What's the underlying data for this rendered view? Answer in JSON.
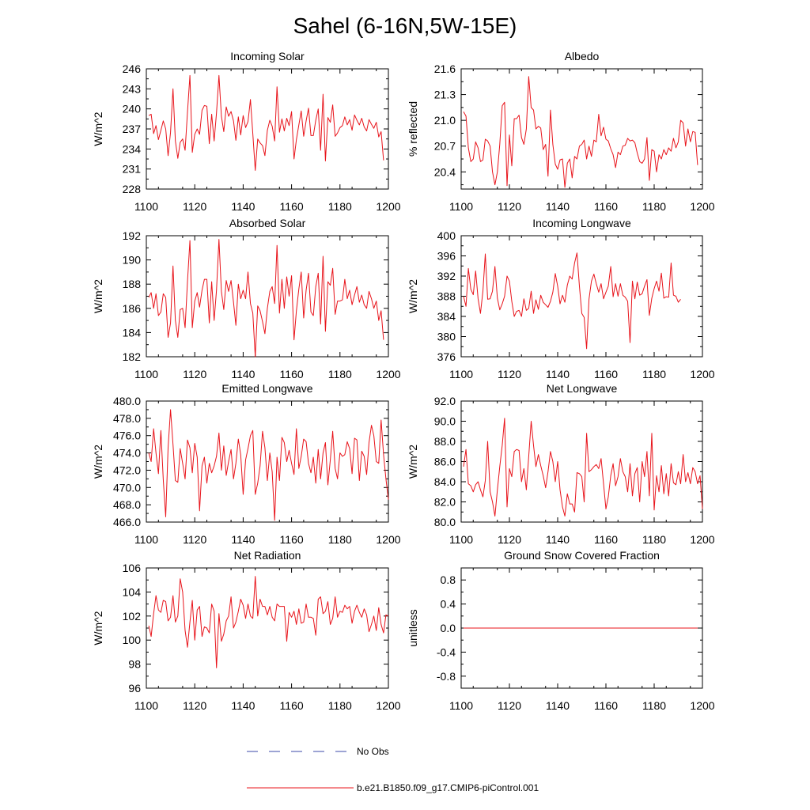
{
  "figure_title": "Sahel (6-16N,5W-15E)",
  "legend": {
    "obs_label": "No Obs",
    "obs_color": "#3b4aa8",
    "model_label": "b.e21.B1850.f09_g17.CMIP6-piControl.001",
    "model_color": "#e8141b"
  },
  "chart_data": [
    {
      "type": "line",
      "title": "Incoming Solar",
      "ylabel": "W/m^2",
      "xlim": [
        1100,
        1200
      ],
      "ylim": [
        228,
        246
      ],
      "xticks": [
        "1100",
        "1120",
        "1140",
        "1160",
        "1180",
        "1200"
      ],
      "yticks": [
        "228",
        "231",
        "234",
        "237",
        "240",
        "243",
        "246"
      ],
      "x_start": 1101,
      "series": [
        {
          "name": "b.e21.B1850.f09_g17.CMIP6-piControl.001",
          "values": [
            239.0,
            239.2,
            236.3,
            237.5,
            235.4,
            236.8,
            238.2,
            237.0,
            233.0,
            236.5,
            243.0,
            235.2,
            232.6,
            235.0,
            235.5,
            233.8,
            239.5,
            245.0,
            233.5,
            236.2,
            237.0,
            236.2,
            239.8,
            240.5,
            240.4,
            234.8,
            239.2,
            235.2,
            239.4,
            245.0,
            238.9,
            236.6,
            240.3,
            238.9,
            239.6,
            238.2,
            235.3,
            238.8,
            236.1,
            239.0,
            237.2,
            238.1,
            241.4,
            236.3,
            230.8,
            235.5,
            234.9,
            234.5,
            233.0,
            236.8,
            238.3,
            237.4,
            235.2,
            243.3,
            236.5,
            238.5,
            236.7,
            238.6,
            237.5,
            239.6,
            232.5,
            235.4,
            237.6,
            239.7,
            235.9,
            238.2,
            240.1,
            236.0,
            236.0,
            238.3,
            240.0,
            233.8,
            242.2,
            232.2,
            238.7,
            238.0,
            240.6,
            235.9,
            236.4,
            237.2,
            237.5,
            238.8,
            237.6,
            238.4,
            236.8,
            239.1,
            238.3,
            237.6,
            238.6,
            237.3,
            236.7,
            238.4,
            237.7,
            237.1,
            238.0,
            235.8,
            236.6,
            232.3
          ]
        }
      ]
    },
    {
      "type": "line",
      "title": "Albedo",
      "ylabel": "% reflected",
      "xlim": [
        1100,
        1200
      ],
      "ylim": [
        20.2,
        21.6
      ],
      "xticks": [
        "1100",
        "1120",
        "1140",
        "1160",
        "1180",
        "1200"
      ],
      "yticks": [
        "20.4",
        "20.7",
        "21.0",
        "21.3",
        "21.6"
      ],
      "x_start": 1101,
      "series": [
        {
          "name": "b.e21.B1850.f09_g17.CMIP6-piControl.001",
          "values": [
            21.1,
            21.05,
            20.68,
            20.52,
            20.55,
            20.75,
            20.68,
            20.52,
            20.54,
            20.78,
            20.76,
            20.7,
            20.4,
            20.25,
            20.4,
            20.72,
            21.17,
            21.21,
            20.24,
            20.83,
            20.47,
            21.02,
            21.02,
            21.06,
            20.8,
            20.72,
            20.9,
            21.51,
            21.15,
            21.12,
            20.9,
            20.93,
            20.91,
            20.66,
            20.72,
            20.35,
            21.12,
            20.72,
            20.49,
            20.43,
            20.54,
            20.55,
            20.22,
            20.5,
            20.55,
            20.33,
            20.58,
            20.55,
            20.7,
            20.72,
            20.77,
            20.55,
            20.7,
            20.58,
            20.77,
            20.75,
            21.07,
            20.82,
            20.92,
            20.78,
            20.76,
            20.67,
            20.6,
            20.45,
            20.63,
            20.6,
            20.7,
            20.71,
            20.79,
            20.76,
            20.77,
            20.74,
            20.62,
            20.52,
            20.5,
            20.55,
            20.8,
            20.3,
            20.66,
            20.64,
            20.4,
            20.6,
            20.55,
            20.66,
            20.6,
            20.68,
            20.64,
            20.79,
            20.68,
            20.75,
            21.0,
            20.97,
            20.7,
            20.9,
            20.75,
            20.87,
            20.86,
            20.48
          ]
        }
      ]
    },
    {
      "type": "line",
      "title": "Absorbed Solar",
      "ylabel": "W/m^2",
      "xlim": [
        1100,
        1200
      ],
      "ylim": [
        182,
        192
      ],
      "xticks": [
        "1100",
        "1120",
        "1140",
        "1160",
        "1180",
        "1200"
      ],
      "yticks": [
        "182",
        "184",
        "186",
        "188",
        "190",
        "192"
      ],
      "x_start": 1101,
      "series": [
        {
          "name": "b.e21.B1850.f09_g17.CMIP6-piControl.001",
          "values": [
            186.9,
            187.3,
            186.0,
            187.2,
            185.4,
            185.7,
            187.2,
            186.9,
            183.6,
            184.8,
            189.5,
            185.0,
            183.6,
            185.9,
            186.0,
            184.4,
            188.2,
            191.6,
            184.4,
            186.6,
            187.3,
            186.1,
            187.5,
            188.4,
            188.4,
            184.8,
            188.2,
            185.0,
            187.5,
            191.7,
            187.4,
            185.9,
            188.3,
            187.4,
            188.3,
            186.5,
            184.6,
            188.0,
            186.8,
            187.5,
            186.8,
            189.0,
            186.4,
            185.6,
            182.0,
            186.2,
            185.8,
            184.9,
            183.9,
            186.0,
            187.4,
            187.8,
            186.4,
            191.2,
            185.6,
            188.4,
            186.0,
            188.6,
            187.0,
            188.7,
            183.4,
            185.8,
            187.6,
            189.0,
            185.2,
            187.5,
            188.9,
            185.7,
            185.4,
            187.8,
            188.9,
            184.7,
            190.3,
            184.1,
            188.2,
            187.9,
            189.3,
            185.5,
            186.6,
            186.6,
            186.7,
            188.4,
            186.8,
            187.5,
            186.3,
            187.1,
            187.8,
            186.5,
            187.1,
            186.3,
            186.0,
            187.4,
            186.8,
            186.0,
            186.6,
            185.0,
            185.8,
            183.4
          ]
        }
      ]
    },
    {
      "type": "line",
      "title": "Incoming Longwave",
      "ylabel": "W/m^2",
      "xlim": [
        1100,
        1200
      ],
      "ylim": [
        376,
        400
      ],
      "xticks": [
        "1100",
        "1120",
        "1140",
        "1160",
        "1180",
        "1200"
      ],
      "yticks": [
        "376",
        "380",
        "384",
        "388",
        "392",
        "396",
        "400"
      ],
      "x_start": 1101,
      "series": [
        {
          "name": "b.e21.B1850.f09_g17.CMIP6-piControl.001",
          "values": [
            388.0,
            386.0,
            393.5,
            389.4,
            388.3,
            393.0,
            387.5,
            384.6,
            389.0,
            396.4,
            387.4,
            387.5,
            389.0,
            393.9,
            387.6,
            385.3,
            386.5,
            388.0,
            392.0,
            391.0,
            387.0,
            384.0,
            385.0,
            385.2,
            384.0,
            387.5,
            385.2,
            385.6,
            389.0,
            384.6,
            387.3,
            385.4,
            388.2,
            386.8,
            386.3,
            385.8,
            387.0,
            388.8,
            392.5,
            390.0,
            386.5,
            388.2,
            386.8,
            390.2,
            392.0,
            391.4,
            394.6,
            396.6,
            390.0,
            384.6,
            383.8,
            377.6,
            387.4,
            391.0,
            392.4,
            390.5,
            388.8,
            390.5,
            387.5,
            388.8,
            390.0,
            393.9,
            387.9,
            390.5,
            388.0,
            390.5,
            388.2,
            387.8,
            387.0,
            378.8,
            391.0,
            387.5,
            390.8,
            388.2,
            388.5,
            390.0,
            391.3,
            384.2,
            387.6,
            389.5,
            391.0,
            389.0,
            392.6,
            387.6,
            387.9,
            387.8,
            394.6,
            388.2,
            388.0,
            386.8,
            387.4
          ]
        }
      ]
    },
    {
      "type": "line",
      "title": "Emitted Longwave",
      "ylabel": "W/m^2",
      "xlim": [
        1100,
        1200
      ],
      "ylim": [
        466.0,
        480.0
      ],
      "xticks": [
        "1100",
        "1120",
        "1140",
        "1160",
        "1180",
        "1200"
      ],
      "yticks": [
        "466.0",
        "468.0",
        "470.0",
        "472.0",
        "474.0",
        "476.0",
        "478.0",
        "480.0"
      ],
      "x_start": 1101,
      "series": [
        {
          "name": "b.e21.B1850.f09_g17.CMIP6-piControl.001",
          "values": [
            474.0,
            473.0,
            476.8,
            474.0,
            471.6,
            476.6,
            470.9,
            466.6,
            474.6,
            479.0,
            475.0,
            470.8,
            470.6,
            474.5,
            472.8,
            471.0,
            475.5,
            474.6,
            471.7,
            475.1,
            473.5,
            467.3,
            472.5,
            473.5,
            470.5,
            472.8,
            471.7,
            472.5,
            473.6,
            476.3,
            472.0,
            474.8,
            471.4,
            473.0,
            474.4,
            471.0,
            472.8,
            475.6,
            473.8,
            469.2,
            473.2,
            474.5,
            476.0,
            476.6,
            469.2,
            470.5,
            472.5,
            476.5,
            474.6,
            470.8,
            474.0,
            471.8,
            466.2,
            473.5,
            470.8,
            475.8,
            475.2,
            473.0,
            474.3,
            472.8,
            471.5,
            476.8,
            472.2,
            473.6,
            475.6,
            475.3,
            472.8,
            471.7,
            473.5,
            470.5,
            474.4,
            471.0,
            474.0,
            475.2,
            470.3,
            473.2,
            476.5,
            472.2,
            471.0,
            474.0,
            473.6,
            473.8,
            475.3,
            474.5,
            471.6,
            475.7,
            475.5,
            470.8,
            474.2,
            473.6,
            471.5,
            475.2,
            477.2,
            476.0,
            473.0,
            472.8,
            477.8,
            473.8,
            471.0,
            468.6
          ]
        }
      ]
    },
    {
      "type": "line",
      "title": "Net Longwave",
      "ylabel": "W/m^2",
      "xlim": [
        1100,
        1200
      ],
      "ylim": [
        80.0,
        92.0
      ],
      "xticks": [
        "1100",
        "1120",
        "1140",
        "1160",
        "1180",
        "1200"
      ],
      "yticks": [
        "80.0",
        "82.0",
        "84.0",
        "86.0",
        "88.0",
        "90.0",
        "92.0"
      ],
      "x_start": 1101,
      "series": [
        {
          "name": "b.e21.B1850.f09_g17.CMIP6-piControl.001",
          "values": [
            85.5,
            87.2,
            83.8,
            83.6,
            83.0,
            83.7,
            84.0,
            83.2,
            82.5,
            84.1,
            88.0,
            83.0,
            82.0,
            80.6,
            83.2,
            85.5,
            87.6,
            90.3,
            81.5,
            85.3,
            84.5,
            87.0,
            87.2,
            87.1,
            84.0,
            85.3,
            83.2,
            86.5,
            90.0,
            87.6,
            85.5,
            86.7,
            85.6,
            84.6,
            83.4,
            85.0,
            87.0,
            86.0,
            84.0,
            86.0,
            83.2,
            81.5,
            80.6,
            82.8,
            81.8,
            81.8,
            81.0,
            84.9,
            84.8,
            84.5,
            82.0,
            88.8,
            85.0,
            85.2,
            85.5,
            85.7,
            85.3,
            86.3,
            83.8,
            81.3,
            82.5,
            84.6,
            85.8,
            83.6,
            84.5,
            86.3,
            85.0,
            84.5,
            83.0,
            85.8,
            82.6,
            84.8,
            85.4,
            82.0,
            86.0,
            84.5,
            87.0,
            82.6,
            88.8,
            81.2,
            84.6,
            83.0,
            85.6,
            82.8,
            84.8,
            82.6,
            85.8,
            83.9,
            83.7,
            85.0,
            83.8,
            86.7,
            84.0,
            84.9,
            83.8,
            85.4,
            85.0,
            83.8,
            84.6,
            81.3
          ]
        }
      ]
    },
    {
      "type": "line",
      "title": "Net Radiation",
      "ylabel": "W/m^2",
      "xlim": [
        1100,
        1200
      ],
      "ylim": [
        96,
        106
      ],
      "xticks": [
        "1100",
        "1120",
        "1140",
        "1160",
        "1180",
        "1200"
      ],
      "yticks": [
        "96",
        "98",
        "100",
        "102",
        "104",
        "106"
      ],
      "x_start": 1101,
      "series": [
        {
          "name": "b.e21.B1850.f09_g17.CMIP6-piControl.001",
          "values": [
            101.2,
            100.3,
            102.2,
            103.7,
            102.5,
            102.3,
            103.3,
            103.2,
            101.6,
            101.9,
            103.7,
            101.5,
            102.0,
            105.1,
            104.0,
            100.8,
            99.4,
            101.5,
            103.3,
            100.0,
            102.5,
            102.8,
            100.3,
            101.1,
            101.0,
            100.6,
            103.0,
            102.4,
            97.7,
            102.2,
            99.9,
            100.5,
            101.6,
            102.0,
            103.6,
            101.0,
            101.5,
            102.4,
            103.4,
            102.9,
            101.8,
            103.0,
            102.0,
            101.8,
            105.3,
            102.0,
            103.4,
            102.8,
            102.8,
            102.1,
            102.8,
            101.9,
            101.6,
            103.0,
            102.8,
            102.8,
            102.8,
            99.9,
            102.3,
            101.9,
            102.4,
            101.3,
            102.6,
            101.4,
            101.5,
            103.0,
            101.9,
            101.9,
            101.8,
            100.4,
            103.4,
            103.6,
            102.2,
            102.4,
            103.2,
            101.3,
            101.8,
            103.6,
            101.9,
            102.4,
            102.3,
            102.9,
            102.6,
            102.8,
            101.4,
            102.4,
            102.9,
            102.3,
            101.9,
            102.6,
            102.1,
            100.7,
            101.3,
            102.0,
            100.8,
            102.7,
            101.3,
            100.6,
            102.1,
            102.0
          ]
        }
      ]
    },
    {
      "type": "line",
      "title": "Ground Snow Covered Fraction",
      "ylabel": "unitless",
      "xlim": [
        1100,
        1200
      ],
      "ylim": [
        -1.0,
        1.0
      ],
      "xticks": [
        "1100",
        "1120",
        "1140",
        "1160",
        "1180",
        "1200"
      ],
      "yticks": [
        "-0.8",
        "-0.4",
        "0.0",
        "0.4",
        "0.8"
      ],
      "x_start": 1101,
      "series": [
        {
          "name": "b.e21.B1850.f09_g17.CMIP6-piControl.001",
          "values": [
            0.0,
            0.0,
            0.0,
            0.0,
            0.0,
            0.0,
            0.0,
            0.0,
            0.0,
            0.0,
            0.0,
            0.0,
            0.0,
            0.0,
            0.0,
            0.0,
            0.0,
            0.0,
            0.0,
            0.0,
            0.0,
            0.0,
            0.0,
            0.0,
            0.0,
            0.0,
            0.0,
            0.0,
            0.0,
            0.0,
            0.0,
            0.0,
            0.0,
            0.0,
            0.0,
            0.0,
            0.0,
            0.0,
            0.0,
            0.0,
            0.0,
            0.0,
            0.0,
            0.0,
            0.0,
            0.0,
            0.0,
            0.0,
            0.0,
            0.0,
            0.0,
            0.0,
            0.0,
            0.0,
            0.0,
            0.0,
            0.0,
            0.0,
            0.0,
            0.0,
            0.0,
            0.0,
            0.0,
            0.0,
            0.0,
            0.0,
            0.0,
            0.0,
            0.0,
            0.0,
            0.0,
            0.0,
            0.0,
            0.0,
            0.0,
            0.0,
            0.0,
            0.0,
            0.0,
            0.0,
            0.0,
            0.0,
            0.0,
            0.0,
            0.0,
            0.0,
            0.0,
            0.0,
            0.0,
            0.0,
            0.0,
            0.0,
            0.0,
            0.0,
            0.0,
            0.0,
            0.0,
            0.0
          ]
        }
      ]
    }
  ]
}
